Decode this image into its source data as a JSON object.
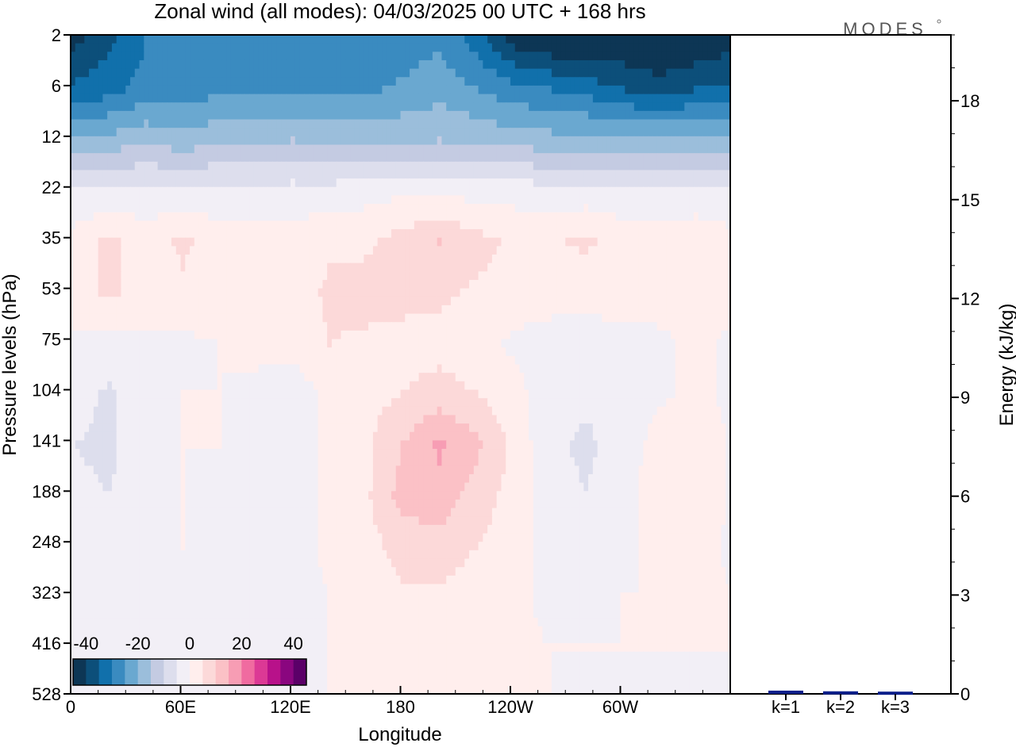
{
  "chart_data": [
    {
      "type": "heatmap",
      "title": "Zonal wind (all modes):  04/03/2025  00 UTC  + 168 hrs",
      "xlabel": "Longitude",
      "ylabel": "Pressure levels (hPa)",
      "x_ticks": [
        "0",
        "60E",
        "120E",
        "180",
        "120W",
        "60W"
      ],
      "x_tick_degrees_east": [
        0,
        60,
        120,
        180,
        240,
        300
      ],
      "xlim_degrees_east": [
        0,
        360
      ],
      "y_ticks": [
        "2",
        "6",
        "12",
        "22",
        "35",
        "53",
        "75",
        "104",
        "141",
        "188",
        "248",
        "323",
        "416",
        "528"
      ],
      "ylim_hpa": [
        528,
        2
      ],
      "colorbar": {
        "ticks": [
          "-40",
          "-20",
          "0",
          "20",
          "40"
        ],
        "range": [
          -45,
          45
        ],
        "step": 5,
        "colors": [
          "#0d3655",
          "#0c4f7a",
          "#1170ab",
          "#3a8bc0",
          "#6aa8d0",
          "#9bbedb",
          "#c4cbe2",
          "#dddeed",
          "#f2eff6",
          "#ffeeed",
          "#fcd9d9",
          "#fbc1c6",
          "#f79db4",
          "#f06ba0",
          "#dc3995",
          "#b8118a",
          "#8a067f",
          "#5b0068"
        ]
      },
      "zonal_wind_ms": {
        "longitudes_degrees_east": [
          0,
          20,
          40,
          60,
          80,
          100,
          120,
          140,
          160,
          180,
          200,
          220,
          240,
          260,
          280,
          300,
          320,
          340,
          360
        ],
        "levels_hpa": [
          2,
          6,
          12,
          22,
          35,
          53,
          75,
          104,
          141,
          188,
          248,
          323,
          416,
          528
        ],
        "values": [
          [
            -42,
            -36,
            -30,
            -30,
            -30,
            -28,
            -30,
            -30,
            -30,
            -28,
            -26,
            -32,
            -42,
            -45,
            -45,
            -45,
            -45,
            -45,
            -42
          ],
          [
            -34,
            -32,
            -28,
            -28,
            -26,
            -26,
            -26,
            -26,
            -26,
            -24,
            -22,
            -25,
            -28,
            -30,
            -32,
            -35,
            -38,
            -35,
            -34
          ],
          [
            -20,
            -18,
            -16,
            -18,
            -16,
            -16,
            -15,
            -16,
            -16,
            -16,
            -15,
            -16,
            -17,
            -18,
            -18,
            -18,
            -18,
            -18,
            -20
          ],
          [
            -5,
            -4,
            -3,
            -4,
            -3,
            -3,
            -3,
            -3,
            -2,
            -1,
            -1,
            -2,
            -2,
            -3,
            -3,
            -3,
            -3,
            -3,
            -5
          ],
          [
            2,
            6,
            2,
            6,
            2,
            2,
            2,
            4,
            4,
            7,
            10,
            7,
            4,
            4,
            6,
            2,
            2,
            3,
            2
          ],
          [
            2,
            6,
            2,
            4,
            2,
            2,
            2,
            6,
            7,
            7,
            6,
            4,
            3,
            2,
            2,
            3,
            2,
            2,
            2
          ],
          [
            -1,
            -2,
            -1,
            -1,
            0,
            1,
            2,
            5,
            4,
            3,
            3,
            2,
            -1,
            -2,
            -3,
            -2,
            -1,
            1,
            -1
          ],
          [
            -3,
            -6,
            -1,
            0,
            0,
            -1,
            -3,
            1,
            3,
            5,
            7,
            5,
            2,
            -3,
            -4,
            -3,
            -1,
            1,
            -1
          ],
          [
            -5,
            -6,
            -2,
            0,
            0,
            -2,
            -3,
            1,
            4,
            10,
            16,
            11,
            4,
            -4,
            -6,
            -3,
            2,
            4,
            -1
          ],
          [
            -4,
            -5,
            -2,
            0,
            -1,
            -1,
            -3,
            1,
            4,
            12,
            13,
            8,
            3,
            -3,
            -5,
            -2,
            3,
            4,
            -1
          ],
          [
            -2,
            -3,
            -1,
            0,
            -2,
            -1,
            -2,
            1,
            3,
            7,
            8,
            5,
            2,
            -2,
            -2,
            -1,
            1,
            2,
            -1
          ],
          [
            -1,
            -1,
            -1,
            -1,
            -1,
            -2,
            -2,
            0,
            2,
            4,
            4,
            2,
            1,
            -1,
            -1,
            0,
            0,
            1,
            0
          ],
          [
            -1,
            -1,
            -1,
            -1,
            -1,
            -1,
            -2,
            0,
            1,
            3,
            2,
            1,
            1,
            0,
            0,
            0,
            0,
            0,
            0
          ],
          [
            -1,
            -1,
            -1,
            -1,
            -1,
            -1,
            -1,
            0,
            1,
            1,
            1,
            1,
            0,
            0,
            -1,
            -1,
            -2,
            -1,
            -1
          ]
        ]
      }
    },
    {
      "type": "bar",
      "ylabel": "Energy (kJ/kg)",
      "categories": [
        "k=1",
        "k=2",
        "k=3"
      ],
      "values": [
        0.05,
        0.03,
        0.02
      ],
      "ylim": [
        0,
        20
      ],
      "y_ticks": [
        "0",
        "3",
        "6",
        "9",
        "12",
        "15",
        "18"
      ],
      "bar_color": "#0c1f8a"
    }
  ],
  "brand": "MODES"
}
